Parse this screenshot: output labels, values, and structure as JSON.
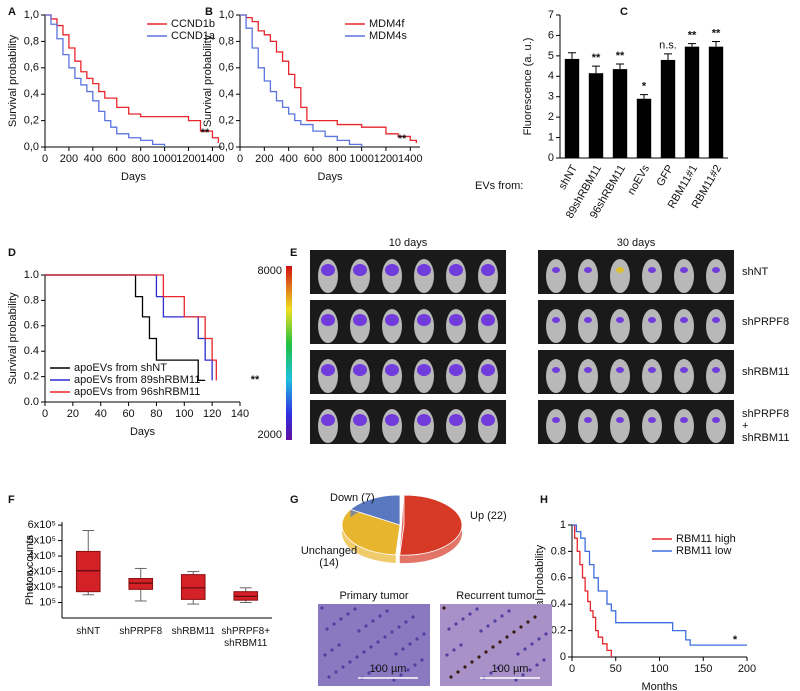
{
  "chart_data": [
    {
      "panel_label": "A",
      "type": "step",
      "xlabel": "Days",
      "ylabel": "Survival probability",
      "legend": "upper right",
      "annotation": "**",
      "xlim": [
        0,
        1480
      ],
      "xticks": [
        0,
        200,
        400,
        600,
        800,
        1000,
        1200,
        1400
      ],
      "ylim": [
        0,
        1
      ],
      "yticks": [
        {
          "value": 0,
          "label": "0,0"
        },
        {
          "value": 0.2,
          "label": "0,2"
        },
        {
          "value": 0.4,
          "label": "0,4"
        },
        {
          "value": 0.6,
          "label": "0,6"
        },
        {
          "value": 0.8,
          "label": "0,8"
        },
        {
          "value": 1,
          "label": "1,0"
        }
      ],
      "series": [
        {
          "name": "CCND1b",
          "color": "#e8262b",
          "x": [
            0,
            50,
            100,
            150,
            200,
            250,
            300,
            350,
            400,
            450,
            500,
            600,
            700,
            800,
            1200,
            1300,
            1400,
            1450
          ],
          "values": [
            1,
            0.97,
            0.92,
            0.85,
            0.75,
            0.65,
            0.57,
            0.52,
            0.48,
            0.42,
            0.37,
            0.3,
            0.25,
            0.23,
            0.2,
            0.12,
            0.07,
            0.03
          ]
        },
        {
          "name": "CCND1a",
          "color": "#5b74e0",
          "x": [
            0,
            50,
            100,
            150,
            200,
            250,
            300,
            350,
            400,
            450,
            500,
            550,
            600,
            700,
            800,
            900,
            1000
          ],
          "values": [
            1,
            0.93,
            0.82,
            0.7,
            0.6,
            0.52,
            0.47,
            0.42,
            0.35,
            0.27,
            0.2,
            0.15,
            0.1,
            0.07,
            0.05,
            0.02,
            0
          ]
        }
      ]
    },
    {
      "panel_label": "B",
      "type": "step",
      "xlabel": "Days",
      "ylabel": "Survival probability",
      "legend": "upper right",
      "annotation": "**",
      "xlim": [
        0,
        1480
      ],
      "xticks": [
        0,
        200,
        400,
        600,
        800,
        1000,
        1200,
        1400
      ],
      "ylim": [
        0,
        1
      ],
      "yticks": [
        {
          "value": 0,
          "label": "0,0"
        },
        {
          "value": 0.2,
          "label": "0,2"
        },
        {
          "value": 0.4,
          "label": "0,4"
        },
        {
          "value": 0.6,
          "label": "0,6"
        },
        {
          "value": 0.8,
          "label": "0,8"
        },
        {
          "value": 1,
          "label": "1,0"
        }
      ],
      "series": [
        {
          "name": "MDM4f",
          "color": "#e8262b",
          "x": [
            0,
            50,
            100,
            150,
            200,
            250,
            300,
            350,
            400,
            450,
            500,
            550,
            800,
            1000,
            1200,
            1300,
            1400,
            1450
          ],
          "values": [
            1,
            0.98,
            0.95,
            0.88,
            0.85,
            0.8,
            0.72,
            0.65,
            0.55,
            0.45,
            0.3,
            0.2,
            0.17,
            0.15,
            0.1,
            0.08,
            0.05,
            0.03
          ]
        },
        {
          "name": "MDM4s",
          "color": "#5b74e0",
          "x": [
            0,
            50,
            100,
            150,
            200,
            250,
            300,
            350,
            400,
            450,
            500,
            600,
            700,
            800,
            900,
            1000
          ],
          "values": [
            1,
            0.9,
            0.75,
            0.6,
            0.5,
            0.42,
            0.35,
            0.3,
            0.25,
            0.2,
            0.17,
            0.12,
            0.08,
            0.05,
            0.02,
            0
          ]
        }
      ]
    },
    {
      "panel_label": "C",
      "type": "bar",
      "ylabel": "Fluorescence (a. u.)",
      "xlabel": "EVs from:",
      "color": "#000000",
      "categories": [
        "shNT",
        "89shRBM11",
        "96shRBM11",
        "noEVs",
        "GFP",
        "RBM11#1",
        "RBM11#2"
      ],
      "values": [
        4.85,
        4.15,
        4.35,
        2.9,
        4.8,
        5.45,
        5.45
      ],
      "errors": [
        0.3,
        0.35,
        0.25,
        0.2,
        0.3,
        0.15,
        0.25
      ],
      "annotations": [
        null,
        "**",
        "**",
        "*",
        "n.s.",
        "**",
        "**"
      ],
      "ylim": [
        0,
        7
      ],
      "yticks": [
        0,
        1,
        2,
        3,
        4,
        5,
        6,
        7
      ]
    },
    {
      "panel_label": "D",
      "type": "step",
      "xlabel": "Days",
      "ylabel": "Survival probability",
      "legend": "lower left",
      "annotation": "**",
      "annotation_color": "#e8262b",
      "xlim": [
        0,
        140
      ],
      "xticks": [
        0,
        20,
        40,
        60,
        80,
        100,
        120,
        140
      ],
      "ylim": [
        0,
        1
      ],
      "yticks": [
        {
          "value": 0,
          "label": "0.0"
        },
        {
          "value": 0.2,
          "label": "0.2"
        },
        {
          "value": 0.4,
          "label": "0.4"
        },
        {
          "value": 0.6,
          "label": "0.6"
        },
        {
          "value": 0.8,
          "label": "0.8"
        },
        {
          "value": 1,
          "label": "1.0"
        }
      ],
      "series": [
        {
          "name": "apoEVs from shNT",
          "color": "#000000",
          "x": [
            0,
            60,
            65,
            70,
            75,
            80,
            110,
            115
          ],
          "values": [
            1,
            1,
            0.83,
            0.67,
            0.5,
            0.33,
            0.17,
            0.17
          ]
        },
        {
          "name": "apoEVs from 89shRBM11",
          "color": "#2b2bd0",
          "x": [
            0,
            70,
            80,
            85,
            110,
            115,
            120
          ],
          "values": [
            1,
            1,
            0.83,
            0.67,
            0.5,
            0.33,
            0.17
          ]
        },
        {
          "name": "apoEVs from 96shRBM11",
          "color": "#e8262b",
          "x": [
            0,
            75,
            85,
            100,
            115,
            120,
            123
          ],
          "values": [
            1,
            1,
            0.83,
            0.67,
            0.5,
            0.33,
            0.17
          ]
        }
      ]
    },
    {
      "panel_label": "F",
      "type": "box",
      "ylabel": "Photon counts",
      "color": "#d42027",
      "categories": [
        "shNT",
        "shPRPF8",
        "shRBM11",
        "shPRPF8+ shRBM11"
      ],
      "min": [
        150000,
        110000,
        90000,
        100000
      ],
      "q1": [
        170000,
        185000,
        120000,
        115000
      ],
      "median": [
        305000,
        225000,
        195000,
        140000
      ],
      "q3": [
        430000,
        255000,
        280000,
        170000
      ],
      "max": [
        565000,
        320000,
        300000,
        195000
      ],
      "ylim": [
        0,
        620000
      ],
      "yticks": [
        {
          "value": 100000,
          "label": "10⁵"
        },
        {
          "value": 200000,
          "label": "2x10⁵"
        },
        {
          "value": 300000,
          "label": "3x10⁵"
        },
        {
          "value": 400000,
          "label": "4x10⁵"
        },
        {
          "value": 500000,
          "label": "5x10⁵"
        },
        {
          "value": 600000,
          "label": "6x10⁵"
        }
      ]
    },
    {
      "panel_label": "G",
      "type": "pie",
      "values": [
        22,
        14,
        7
      ],
      "value_labels": [
        "Up (22)",
        "Unchanged (14)",
        "Down (7)"
      ],
      "colors": [
        "#d63a26",
        "#e8b52e",
        "#5a78c0"
      ]
    },
    {
      "panel_label": "H",
      "type": "step",
      "xlabel": "Months",
      "ylabel": "Survival probability",
      "legend": "upper right",
      "annotation": "*",
      "annotation_color": "#3d6ee0",
      "xlim": [
        0,
        200
      ],
      "xticks": [
        0,
        50,
        100,
        150,
        200
      ],
      "ylim": [
        0,
        1
      ],
      "yticks": [
        0,
        0.2,
        0.4,
        0.6,
        0.8,
        1
      ],
      "series": [
        {
          "name": "RBM11 high",
          "color": "#e8262b",
          "x": [
            0,
            3,
            6,
            9,
            12,
            15,
            18,
            21,
            24,
            27,
            30,
            35,
            40,
            45
          ],
          "values": [
            1,
            0.9,
            0.8,
            0.7,
            0.6,
            0.5,
            0.42,
            0.35,
            0.3,
            0.2,
            0.15,
            0.1,
            0.05,
            0
          ]
        },
        {
          "name": "RBM11 low",
          "color": "#3d6ee0",
          "x": [
            0,
            5,
            10,
            15,
            20,
            25,
            30,
            40,
            45,
            50,
            110,
            115,
            130,
            135,
            200
          ],
          "values": [
            1,
            0.95,
            0.9,
            0.8,
            0.7,
            0.6,
            0.5,
            0.4,
            0.35,
            0.26,
            0.26,
            0.2,
            0.13,
            0.09,
            0.09
          ]
        }
      ]
    }
  ],
  "imaging": {
    "panel_label": "E",
    "columns": [
      "10 days",
      "30 days"
    ],
    "rows": [
      "shNT",
      "shPRPF8",
      "shRBM11",
      "shPRPF8 + shRBM11"
    ],
    "colorbar": {
      "max": 8000,
      "min": 2000
    }
  },
  "histology": {
    "images": [
      {
        "title": "Primary tumor",
        "scale_bar": "100 µm"
      },
      {
        "title": "Recurrent tumor",
        "scale_bar": "100 µm"
      }
    ]
  }
}
